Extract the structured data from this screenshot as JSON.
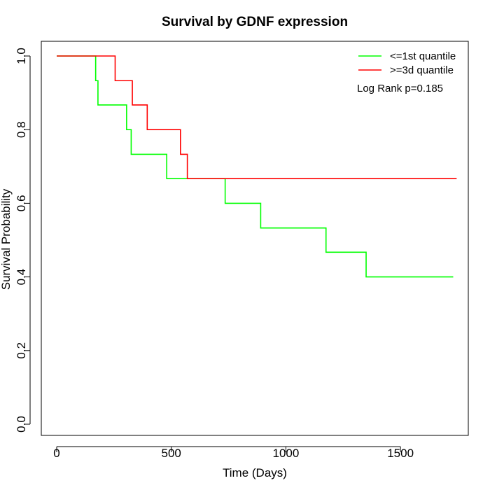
{
  "chart_data": {
    "type": "line",
    "subtype": "kaplan-meier step",
    "title": "Survival by GDNF expression",
    "xlabel": "Time (Days)",
    "ylabel": "Survival Probability",
    "xlim": [
      0,
      1800
    ],
    "ylim": [
      0,
      1.0
    ],
    "x_ticks": [
      0,
      500,
      1000,
      1500
    ],
    "x_tick_labels": [
      "0",
      "500",
      "1000",
      "1500"
    ],
    "y_ticks": [
      0,
      0.2,
      0.4,
      0.6,
      0.8,
      1.0
    ],
    "y_tick_labels": [
      "0.0",
      "0.2",
      "0.4",
      "0.6",
      "0.8",
      "1.0"
    ],
    "grid": false,
    "legend_position": "top-right",
    "annotation": "Log Rank p=0.185",
    "series": [
      {
        "name": "<=1st quantile",
        "color": "#00ff00",
        "x": [
          0,
          170,
          180,
          305,
          325,
          480,
          735,
          890,
          1175,
          1350,
          1730
        ],
        "y": [
          1.0,
          0.933,
          0.867,
          0.8,
          0.733,
          0.667,
          0.6,
          0.533,
          0.467,
          0.4,
          0.4
        ]
      },
      {
        "name": ">=3d quantile",
        "color": "#ff0000",
        "x": [
          0,
          255,
          330,
          395,
          540,
          570,
          1745
        ],
        "y": [
          1.0,
          0.933,
          0.867,
          0.8,
          0.733,
          0.667,
          0.667
        ]
      }
    ]
  }
}
